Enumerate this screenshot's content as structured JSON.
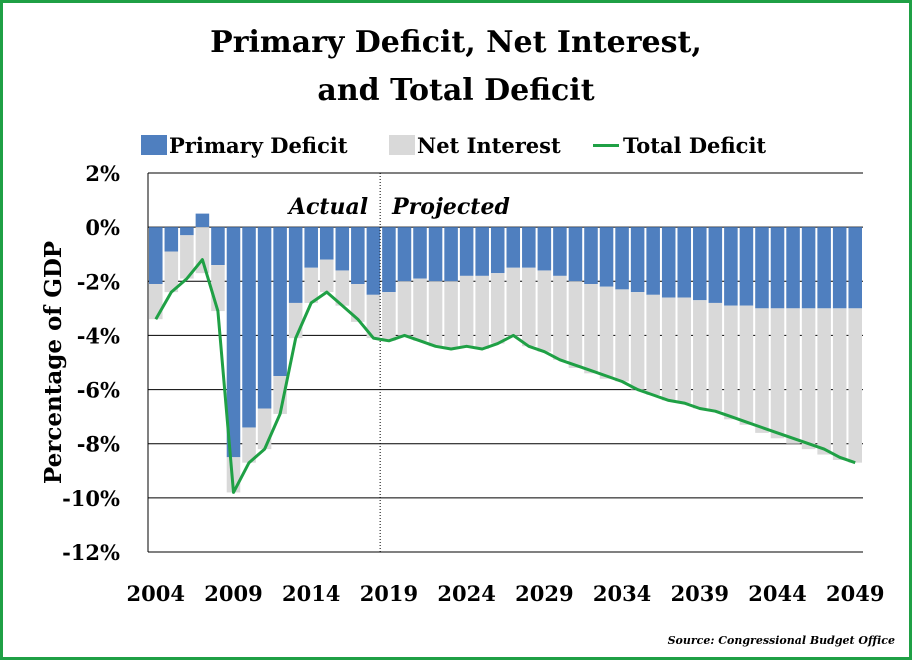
{
  "chart_data": {
    "type": "bar",
    "title_line1": "Primary Deficit, Net Interest,",
    "title_line2": "and Total Deficit",
    "ylabel": "Percentage of GDP",
    "xlabel": "",
    "ylim": [
      -12,
      2
    ],
    "yticks": [
      2,
      0,
      -2,
      -4,
      -6,
      -8,
      -10,
      -12
    ],
    "ytick_labels": [
      "2%",
      "0%",
      "-2%",
      "-4%",
      "-6%",
      "-8%",
      "-10%",
      "-12%"
    ],
    "xtick_labels": [
      "2004",
      "2009",
      "2014",
      "2019",
      "2024",
      "2029",
      "2034",
      "2039",
      "2044",
      "2049"
    ],
    "annotation_actual": "Actual",
    "annotation_projected": "Projected",
    "divider_after_year": 2018,
    "legend_position": "top",
    "grid": "horizontal",
    "years": [
      2004,
      2005,
      2006,
      2007,
      2008,
      2009,
      2010,
      2011,
      2012,
      2013,
      2014,
      2015,
      2016,
      2017,
      2018,
      2019,
      2020,
      2021,
      2022,
      2023,
      2024,
      2025,
      2026,
      2027,
      2028,
      2029,
      2030,
      2031,
      2032,
      2033,
      2034,
      2035,
      2036,
      2037,
      2038,
      2039,
      2040,
      2041,
      2042,
      2043,
      2044,
      2045,
      2046,
      2047,
      2048,
      2049
    ],
    "series": [
      {
        "name": "Primary Deficit",
        "color": "#4f7fbf",
        "type": "bar",
        "values": [
          -2.1,
          -0.9,
          -0.3,
          0.5,
          -1.4,
          -8.5,
          -7.4,
          -6.7,
          -5.5,
          -2.8,
          -1.5,
          -1.2,
          -1.6,
          -2.1,
          -2.5,
          -2.4,
          -2.0,
          -1.9,
          -2.0,
          -2.0,
          -1.8,
          -1.8,
          -1.7,
          -1.5,
          -1.5,
          -1.6,
          -1.8,
          -2.0,
          -2.1,
          -2.2,
          -2.3,
          -2.4,
          -2.5,
          -2.6,
          -2.6,
          -2.7,
          -2.8,
          -2.9,
          -2.9,
          -3.0,
          -3.0,
          -3.0,
          -3.0,
          -3.0,
          -3.0,
          -3.0
        ]
      },
      {
        "name": "Net Interest",
        "color": "#d9d9d9",
        "type": "bar",
        "values": [
          -1.3,
          -1.5,
          -1.6,
          -1.7,
          -1.7,
          -1.3,
          -1.3,
          -1.5,
          -1.4,
          -1.3,
          -1.3,
          -1.2,
          -1.3,
          -1.4,
          -1.6,
          -1.8,
          -2.0,
          -2.3,
          -2.4,
          -2.5,
          -2.6,
          -2.7,
          -2.6,
          -2.5,
          -2.9,
          -3.0,
          -3.1,
          -3.2,
          -3.3,
          -3.4,
          -3.4,
          -3.6,
          -3.7,
          -3.8,
          -3.9,
          -4.0,
          -4.0,
          -4.2,
          -4.4,
          -4.6,
          -4.8,
          -5.0,
          -5.2,
          -5.4,
          -5.6,
          -5.7
        ]
      },
      {
        "name": "Total Deficit",
        "color": "#1fa045",
        "type": "line",
        "values": [
          -3.4,
          -2.4,
          -1.9,
          -1.2,
          -3.1,
          -9.8,
          -8.7,
          -8.2,
          -6.9,
          -4.1,
          -2.8,
          -2.4,
          -2.9,
          -3.4,
          -4.1,
          -4.2,
          -4.0,
          -4.2,
          -4.4,
          -4.5,
          -4.4,
          -4.5,
          -4.3,
          -4.0,
          -4.4,
          -4.6,
          -4.9,
          -5.1,
          -5.3,
          -5.5,
          -5.7,
          -6.0,
          -6.2,
          -6.4,
          -6.5,
          -6.7,
          -6.8,
          -7.0,
          -7.2,
          -7.4,
          -7.6,
          -7.8,
          -8.0,
          -8.2,
          -8.5,
          -8.7
        ]
      }
    ]
  },
  "source": "Source: Congressional Budget Office"
}
